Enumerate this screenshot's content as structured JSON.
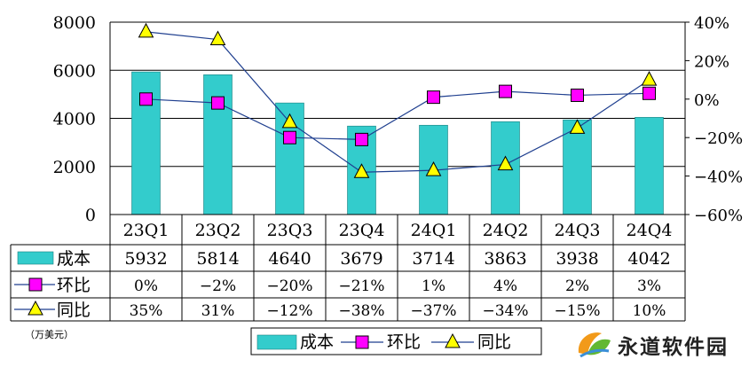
{
  "chart_data": {
    "type": "bar",
    "categories": [
      "23Q1",
      "23Q2",
      "23Q3",
      "23Q4",
      "24Q1",
      "24Q2",
      "24Q3",
      "24Q4"
    ],
    "ylim": [
      0,
      8000
    ],
    "yticks": [
      "0",
      "2000",
      "4000",
      "6000",
      "8000"
    ],
    "y2lim": [
      -60,
      40
    ],
    "y2ticks": [
      "−60%",
      "−40%",
      "−20%",
      "0%",
      "20%",
      "40%"
    ],
    "grid": "horizontal",
    "unit_note": "（万美元）",
    "legend_placement": "bottom",
    "series": [
      {
        "name": "成本",
        "type": "bar",
        "axis": "left",
        "color": "#33cccc",
        "values": [
          5932,
          5814,
          4640,
          3679,
          3714,
          3863,
          3938,
          4042
        ],
        "labels": [
          "5932",
          "5814",
          "4640",
          "3679",
          "3714",
          "3863",
          "3938",
          "4042"
        ]
      },
      {
        "name": "环比",
        "type": "line",
        "axis": "right",
        "marker": "square",
        "color": "#ff00ff",
        "values": [
          0,
          -2,
          -20,
          -21,
          1,
          4,
          2,
          3
        ],
        "labels": [
          "0%",
          "−2%",
          "−20%",
          "−21%",
          "1%",
          "4%",
          "2%",
          "3%"
        ]
      },
      {
        "name": "同比",
        "type": "line",
        "axis": "right",
        "marker": "triangle",
        "color": "#ffff00",
        "values": [
          35,
          31,
          -12,
          -38,
          -37,
          -34,
          -15,
          10
        ],
        "labels": [
          "35%",
          "31%",
          "−12%",
          "−38%",
          "−37%",
          "−34%",
          "−15%",
          "10%"
        ]
      }
    ]
  },
  "watermark": {
    "text": "永道软件园"
  }
}
